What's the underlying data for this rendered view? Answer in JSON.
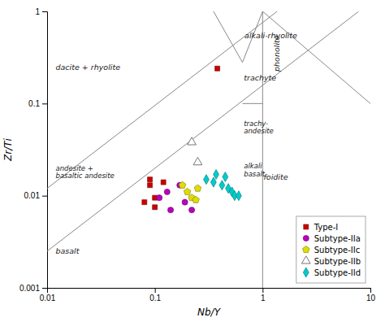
{
  "chart_data": {
    "type": "scatter",
    "log": true,
    "x_label": "Nb/Y",
    "y_label": "Zr/Ti",
    "xlim": [
      0.01,
      10
    ],
    "ylim": [
      0.001,
      1
    ],
    "xticks": [
      0.01,
      0.1,
      1,
      10
    ],
    "yticks": [
      0.001,
      0.01,
      0.1,
      1
    ],
    "grid": false,
    "legend": "lower right",
    "series": [
      {
        "name": "Type-I",
        "color": "#cc0000",
        "marker": "square",
        "x": [
          0.08,
          0.09,
          0.09,
          0.1,
          0.1,
          0.12,
          0.38
        ],
        "values": [
          0.0085,
          0.013,
          0.015,
          0.0095,
          0.0075,
          0.014,
          0.24
        ]
      },
      {
        "name": "Subtype-IIa",
        "color": "#bb00bb",
        "marker": "circle",
        "x": [
          0.11,
          0.13,
          0.14,
          0.17,
          0.19,
          0.22
        ],
        "values": [
          0.0095,
          0.011,
          0.007,
          0.013,
          0.0085,
          0.007
        ]
      },
      {
        "name": "Subtype-IIc",
        "color": "#dddd00",
        "marker": "pentagon",
        "x": [
          0.18,
          0.2,
          0.22,
          0.24,
          0.25
        ],
        "values": [
          0.013,
          0.011,
          0.0095,
          0.009,
          0.012
        ]
      },
      {
        "name": "Subtype-IIb",
        "color": "#777777",
        "marker": "open-triangle",
        "x": [
          0.22,
          0.25
        ],
        "values": [
          0.038,
          0.023
        ]
      },
      {
        "name": "Subtype-IId",
        "color": "#00cccc",
        "marker": "diamond",
        "x": [
          0.3,
          0.35,
          0.37,
          0.42,
          0.45,
          0.48,
          0.52,
          0.55,
          0.6
        ],
        "values": [
          0.015,
          0.014,
          0.017,
          0.013,
          0.016,
          0.012,
          0.011,
          0.01,
          0.01
        ]
      }
    ],
    "lines": [
      {
        "color": "#888888",
        "x": [
          0.01,
          7.7835
        ],
        "y": [
          0.0025,
          1
        ]
      },
      {
        "color": "#888888",
        "x": [
          0.01,
          1.3622
        ],
        "y": [
          0.012,
          1
        ]
      },
      {
        "color": "#888888",
        "x": [
          0.35,
          0.65,
          1.0
        ],
        "y": [
          1.0,
          0.28,
          1.0
        ]
      },
      {
        "color": "#888888",
        "x": [
          1.0,
          1.0
        ],
        "y": [
          0.001,
          1.0
        ]
      },
      {
        "color": "#888888",
        "x": [
          0.65,
          1.0
        ],
        "y": [
          0.1,
          0.1
        ]
      },
      {
        "color": "#888888",
        "x": [
          1.0,
          10
        ],
        "y": [
          1.0,
          0.1
        ]
      }
    ],
    "annotations": [
      {
        "text": "dacite + rhyolite",
        "x": 0.012,
        "y": 0.25
      },
      {
        "text": "andesite +\nbasaltic andesite",
        "x": 0.012,
        "y": 0.018
      },
      {
        "text": "basalt",
        "x": 0.012,
        "y": 0.0025
      },
      {
        "text": "alkali-rhyolite",
        "x": 0.68,
        "y": 0.55
      },
      {
        "text": "trachyte",
        "x": 0.67,
        "y": 0.19
      },
      {
        "text": "trachy-\nandesite",
        "x": 0.67,
        "y": 0.055
      },
      {
        "text": "alkali\nbasalt",
        "x": 0.67,
        "y": 0.019
      },
      {
        "text": "foidite",
        "x": 1.02,
        "y": 0.016
      },
      {
        "text": "phonolite",
        "x": 1.35,
        "y": 0.35,
        "orientation": "vertical"
      }
    ]
  }
}
